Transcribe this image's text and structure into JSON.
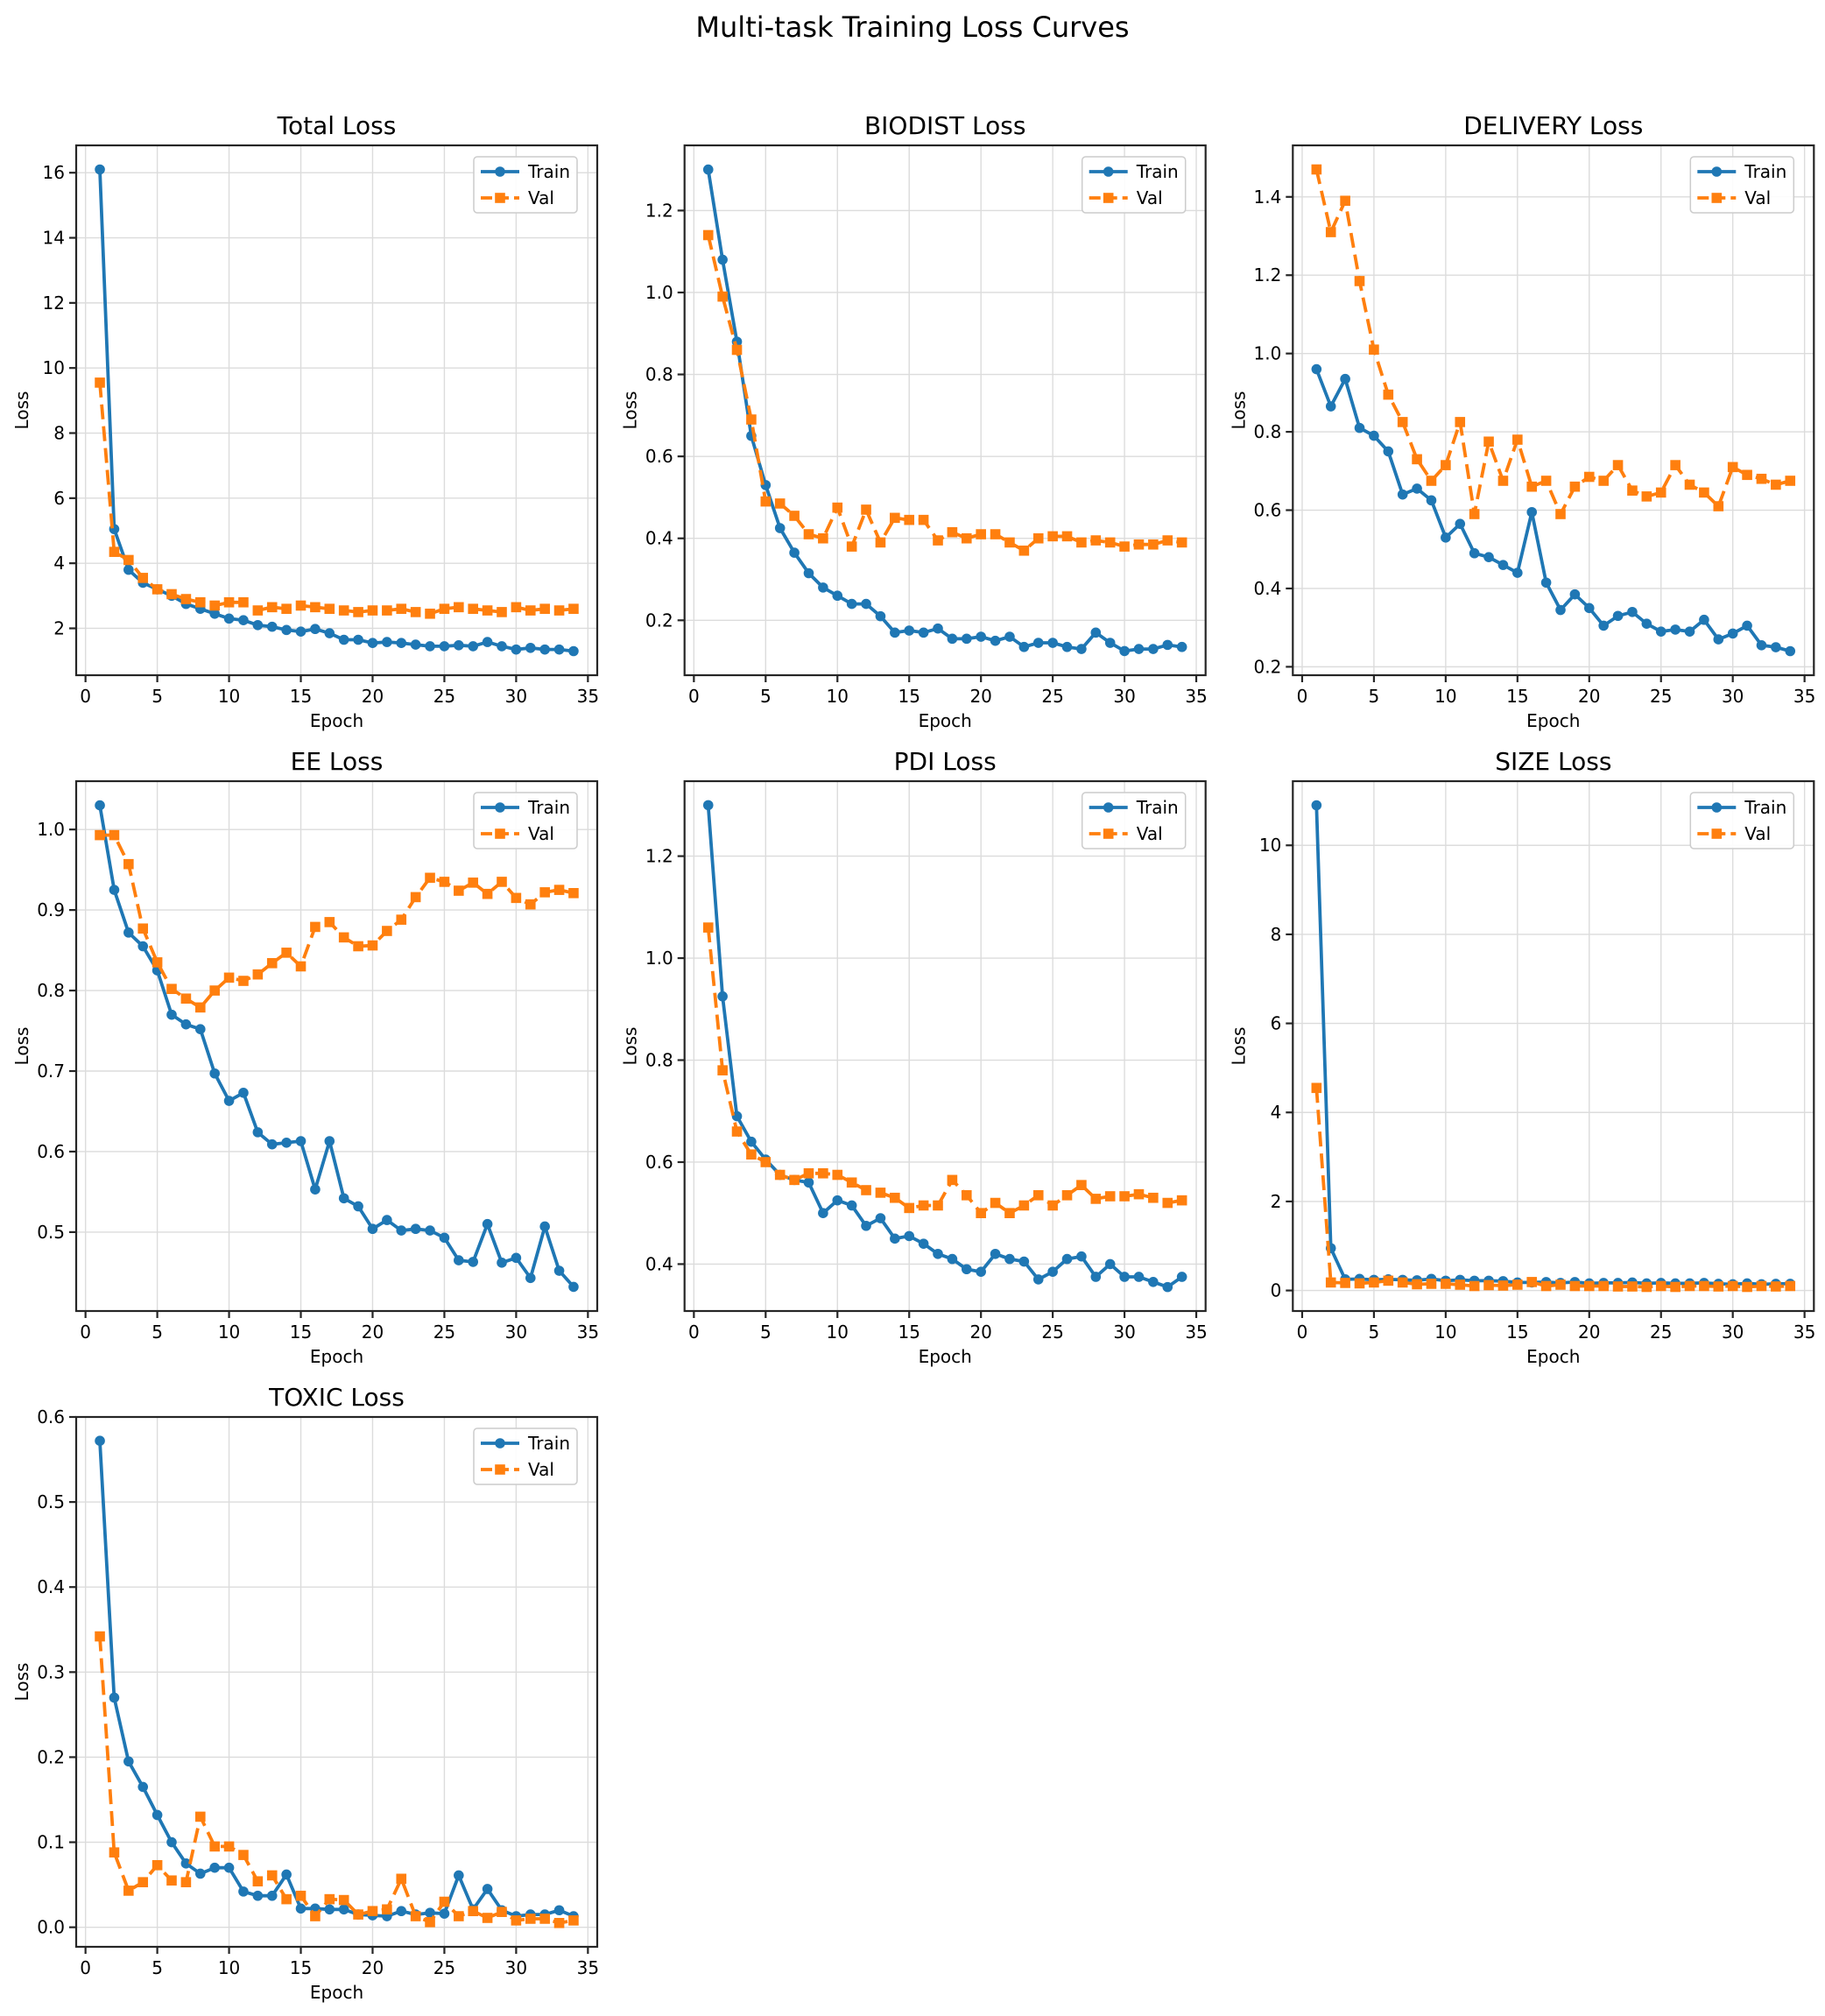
{
  "figure": {
    "title": "Multi-task Training Loss Curves"
  },
  "legend": {
    "entries": [
      "Train",
      "Val"
    ],
    "position": "upper right"
  },
  "style": {
    "train_color": "#1f77b4",
    "val_color": "#ff7f0e",
    "grid_color": "#dcdcdc",
    "spine_color": "#262626",
    "text_color": "#000000",
    "legend_border": "#cccccc"
  },
  "epochs": [
    1,
    2,
    3,
    4,
    5,
    6,
    7,
    8,
    9,
    10,
    11,
    12,
    13,
    14,
    15,
    16,
    17,
    18,
    19,
    20,
    21,
    22,
    23,
    24,
    25,
    26,
    27,
    28,
    29,
    30,
    31,
    32,
    33,
    34
  ],
  "x_axis": {
    "label": "Epoch",
    "xlim": [
      -0.65,
      35.65
    ],
    "xticks": [
      0,
      5,
      10,
      15,
      20,
      25,
      30,
      35
    ],
    "xtick_labels": [
      "0",
      "5",
      "10",
      "15",
      "20",
      "25",
      "30",
      "35"
    ]
  },
  "chart_data": [
    {
      "type": "line",
      "title": "Total Loss",
      "xlabel": "Epoch",
      "ylabel": "Loss",
      "grid": true,
      "legend_position": "upper right",
      "ylim": [
        0.56,
        16.84
      ],
      "yticks": [
        2,
        4,
        6,
        8,
        10,
        12,
        14,
        16
      ],
      "ytick_labels": [
        "2",
        "4",
        "6",
        "8",
        "10",
        "12",
        "14",
        "16"
      ],
      "series": [
        {
          "name": "Train",
          "values": [
            16.1,
            5.05,
            3.8,
            3.4,
            3.2,
            3.0,
            2.75,
            2.6,
            2.45,
            2.3,
            2.25,
            2.1,
            2.05,
            1.95,
            1.9,
            1.98,
            1.85,
            1.65,
            1.65,
            1.55,
            1.58,
            1.55,
            1.5,
            1.45,
            1.45,
            1.48,
            1.45,
            1.58,
            1.45,
            1.35,
            1.4,
            1.35,
            1.35,
            1.3
          ]
        },
        {
          "name": "Val",
          "values": [
            9.55,
            4.35,
            4.1,
            3.55,
            3.2,
            3.05,
            2.9,
            2.8,
            2.7,
            2.8,
            2.8,
            2.55,
            2.65,
            2.6,
            2.7,
            2.65,
            2.6,
            2.55,
            2.5,
            2.55,
            2.55,
            2.6,
            2.5,
            2.45,
            2.6,
            2.65,
            2.6,
            2.55,
            2.5,
            2.65,
            2.55,
            2.6,
            2.55,
            2.6
          ]
        }
      ]
    },
    {
      "type": "line",
      "title": "BIODIST Loss",
      "xlabel": "Epoch",
      "ylabel": "Loss",
      "grid": true,
      "legend_position": "upper right",
      "ylim": [
        0.066,
        1.359
      ],
      "yticks": [
        0.2,
        0.4,
        0.6,
        0.8,
        1.0,
        1.2
      ],
      "ytick_labels": [
        "0.2",
        "0.4",
        "0.6",
        "0.8",
        "1.0",
        "1.2"
      ],
      "series": [
        {
          "name": "Train",
          "values": [
            1.3,
            1.08,
            0.88,
            0.65,
            0.53,
            0.425,
            0.365,
            0.315,
            0.28,
            0.26,
            0.24,
            0.24,
            0.21,
            0.17,
            0.175,
            0.17,
            0.18,
            0.155,
            0.155,
            0.16,
            0.15,
            0.16,
            0.135,
            0.145,
            0.145,
            0.135,
            0.13,
            0.17,
            0.145,
            0.125,
            0.13,
            0.13,
            0.14,
            0.135
          ]
        },
        {
          "name": "Val",
          "values": [
            1.14,
            0.99,
            0.86,
            0.69,
            0.49,
            0.485,
            0.455,
            0.41,
            0.4,
            0.475,
            0.38,
            0.47,
            0.39,
            0.45,
            0.445,
            0.445,
            0.395,
            0.415,
            0.4,
            0.41,
            0.41,
            0.39,
            0.37,
            0.4,
            0.405,
            0.405,
            0.39,
            0.395,
            0.39,
            0.38,
            0.385,
            0.385,
            0.395,
            0.39
          ]
        }
      ]
    },
    {
      "type": "line",
      "title": "DELIVERY Loss",
      "xlabel": "Epoch",
      "ylabel": "Loss",
      "grid": true,
      "legend_position": "upper right",
      "ylim": [
        0.1785,
        1.5315
      ],
      "yticks": [
        0.2,
        0.4,
        0.6,
        0.8,
        1.0,
        1.2,
        1.4
      ],
      "ytick_labels": [
        "0.2",
        "0.4",
        "0.6",
        "0.8",
        "1.0",
        "1.2",
        "1.4"
      ],
      "series": [
        {
          "name": "Train",
          "values": [
            0.96,
            0.865,
            0.935,
            0.81,
            0.79,
            0.75,
            0.64,
            0.655,
            0.625,
            0.53,
            0.565,
            0.49,
            0.48,
            0.46,
            0.44,
            0.595,
            0.415,
            0.345,
            0.385,
            0.35,
            0.305,
            0.33,
            0.34,
            0.31,
            0.29,
            0.295,
            0.29,
            0.32,
            0.27,
            0.285,
            0.305,
            0.255,
            0.25,
            0.24
          ]
        },
        {
          "name": "Val",
          "values": [
            1.47,
            1.31,
            1.39,
            1.185,
            1.01,
            0.895,
            0.825,
            0.73,
            0.675,
            0.715,
            0.825,
            0.59,
            0.775,
            0.675,
            0.78,
            0.66,
            0.675,
            0.59,
            0.66,
            0.685,
            0.675,
            0.715,
            0.65,
            0.635,
            0.645,
            0.715,
            0.665,
            0.645,
            0.61,
            0.71,
            0.69,
            0.68,
            0.665,
            0.675
          ]
        }
      ]
    },
    {
      "type": "line",
      "title": "EE Loss",
      "xlabel": "Epoch",
      "ylabel": "Loss",
      "grid": true,
      "legend_position": "upper right",
      "ylim": [
        0.402,
        1.06
      ],
      "yticks": [
        0.5,
        0.6,
        0.7,
        0.8,
        0.9,
        1.0
      ],
      "ytick_labels": [
        "0.5",
        "0.6",
        "0.7",
        "0.8",
        "0.9",
        "1.0"
      ],
      "series": [
        {
          "name": "Train",
          "values": [
            1.03,
            0.925,
            0.872,
            0.855,
            0.825,
            0.77,
            0.758,
            0.752,
            0.697,
            0.663,
            0.673,
            0.624,
            0.609,
            0.611,
            0.613,
            0.553,
            0.613,
            0.542,
            0.532,
            0.504,
            0.515,
            0.502,
            0.504,
            0.502,
            0.493,
            0.465,
            0.463,
            0.51,
            0.462,
            0.468,
            0.443,
            0.507,
            0.452,
            0.432
          ]
        },
        {
          "name": "Val",
          "values": [
            0.993,
            0.993,
            0.957,
            0.877,
            0.835,
            0.802,
            0.79,
            0.779,
            0.8,
            0.816,
            0.812,
            0.82,
            0.834,
            0.847,
            0.83,
            0.879,
            0.885,
            0.866,
            0.855,
            0.856,
            0.874,
            0.888,
            0.916,
            0.94,
            0.935,
            0.924,
            0.934,
            0.92,
            0.935,
            0.915,
            0.907,
            0.922,
            0.925,
            0.921
          ]
        }
      ]
    },
    {
      "type": "line",
      "title": "PDI Loss",
      "xlabel": "Epoch",
      "ylabel": "Loss",
      "grid": true,
      "legend_position": "upper right",
      "ylim": [
        0.308,
        1.347
      ],
      "yticks": [
        0.4,
        0.6,
        0.8,
        1.0,
        1.2
      ],
      "ytick_labels": [
        "0.4",
        "0.6",
        "0.8",
        "1.0",
        "1.2"
      ],
      "series": [
        {
          "name": "Train",
          "values": [
            1.3,
            0.925,
            0.69,
            0.64,
            0.605,
            0.575,
            0.565,
            0.56,
            0.5,
            0.525,
            0.515,
            0.475,
            0.49,
            0.45,
            0.455,
            0.44,
            0.42,
            0.41,
            0.39,
            0.385,
            0.42,
            0.41,
            0.405,
            0.37,
            0.385,
            0.41,
            0.415,
            0.375,
            0.4,
            0.375,
            0.375,
            0.365,
            0.355,
            0.375
          ]
        },
        {
          "name": "Val",
          "values": [
            1.06,
            0.78,
            0.66,
            0.615,
            0.6,
            0.575,
            0.565,
            0.578,
            0.578,
            0.575,
            0.56,
            0.545,
            0.54,
            0.53,
            0.51,
            0.515,
            0.515,
            0.565,
            0.535,
            0.5,
            0.52,
            0.5,
            0.515,
            0.535,
            0.515,
            0.535,
            0.555,
            0.528,
            0.533,
            0.533,
            0.537,
            0.53,
            0.52,
            0.525
          ]
        }
      ]
    },
    {
      "type": "line",
      "title": "SIZE Loss",
      "xlabel": "Epoch",
      "ylabel": "Loss",
      "grid": true,
      "legend_position": "upper right",
      "ylim": [
        -0.461,
        11.441
      ],
      "yticks": [
        0,
        2,
        4,
        6,
        8,
        10
      ],
      "ytick_labels": [
        "0",
        "2",
        "4",
        "6",
        "8",
        "10"
      ],
      "series": [
        {
          "name": "Train",
          "values": [
            10.9,
            0.95,
            0.25,
            0.26,
            0.24,
            0.25,
            0.24,
            0.23,
            0.26,
            0.22,
            0.24,
            0.22,
            0.22,
            0.21,
            0.18,
            0.18,
            0.19,
            0.17,
            0.19,
            0.16,
            0.17,
            0.17,
            0.18,
            0.16,
            0.17,
            0.16,
            0.16,
            0.17,
            0.15,
            0.14,
            0.16,
            0.14,
            0.15,
            0.15
          ]
        },
        {
          "name": "Val",
          "values": [
            4.55,
            0.18,
            0.17,
            0.16,
            0.18,
            0.22,
            0.18,
            0.14,
            0.15,
            0.15,
            0.13,
            0.1,
            0.12,
            0.11,
            0.13,
            0.19,
            0.1,
            0.13,
            0.1,
            0.1,
            0.1,
            0.09,
            0.09,
            0.08,
            0.1,
            0.08,
            0.1,
            0.1,
            0.09,
            0.1,
            0.08,
            0.1,
            0.09,
            0.1
          ]
        }
      ]
    },
    {
      "type": "line",
      "title": "TOXIC Loss",
      "xlabel": "Epoch",
      "ylabel": "Loss",
      "grid": true,
      "legend_position": "upper right",
      "ylim": [
        -0.023,
        0.6
      ],
      "yticks": [
        0.0,
        0.1,
        0.2,
        0.3,
        0.4,
        0.5,
        0.6
      ],
      "ytick_labels": [
        "0.0",
        "0.1",
        "0.2",
        "0.3",
        "0.4",
        "0.5",
        "0.6"
      ],
      "series": [
        {
          "name": "Train",
          "values": [
            0.572,
            0.27,
            0.195,
            0.165,
            0.132,
            0.1,
            0.075,
            0.063,
            0.07,
            0.07,
            0.042,
            0.037,
            0.037,
            0.062,
            0.022,
            0.022,
            0.021,
            0.021,
            0.015,
            0.014,
            0.013,
            0.019,
            0.015,
            0.017,
            0.016,
            0.061,
            0.021,
            0.045,
            0.02,
            0.013,
            0.015,
            0.015,
            0.02,
            0.013
          ]
        },
        {
          "name": "Val",
          "values": [
            0.342,
            0.088,
            0.043,
            0.053,
            0.073,
            0.055,
            0.053,
            0.13,
            0.095,
            0.095,
            0.085,
            0.054,
            0.061,
            0.033,
            0.037,
            0.013,
            0.033,
            0.032,
            0.015,
            0.019,
            0.021,
            0.057,
            0.013,
            0.006,
            0.03,
            0.013,
            0.019,
            0.011,
            0.018,
            0.008,
            0.01,
            0.01,
            0.005,
            0.008
          ]
        }
      ]
    }
  ]
}
